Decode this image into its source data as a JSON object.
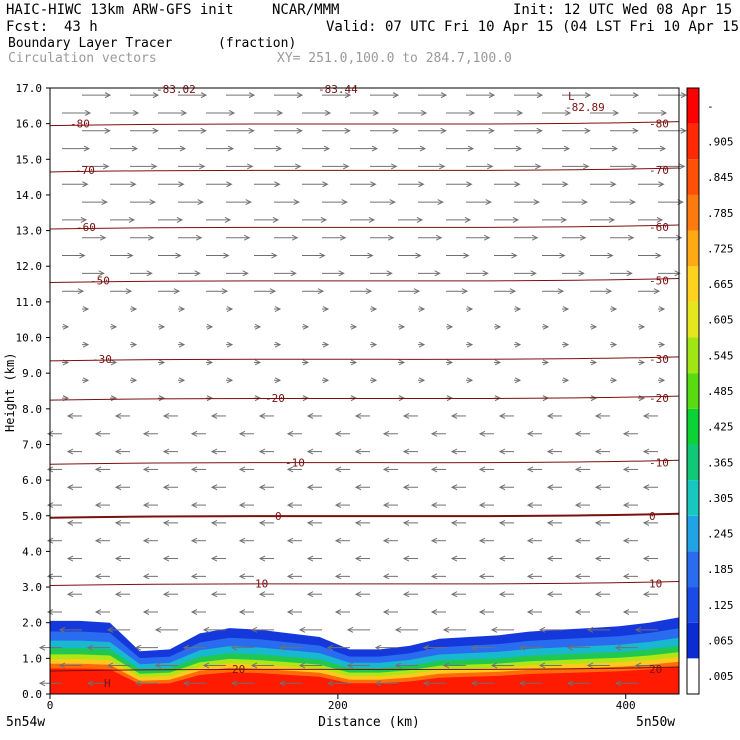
{
  "header": {
    "model_line": "HAIC-HIWC 13km ARW-GFS init",
    "org": "NCAR/MMM",
    "init": "Init: 12 UTC Wed 08 Apr 15",
    "fcst_label": "Fcst:",
    "fcst_value": "43 h",
    "valid": "Valid: 07 UTC Fri 10 Apr 15 (04 LST Fri 10 Apr 15)",
    "field_name": "Boundary Layer Tracer",
    "field_units": "(fraction)",
    "vector_label": "Circulation vectors",
    "xy_label": "XY= 251.0,100.0 to 284.7,100.0"
  },
  "chart_data": {
    "type": "heatmap",
    "xlabel": "Distance (km)",
    "ylabel": "Height (km)",
    "x_ticks": [
      0,
      200,
      400
    ],
    "x_left_label": "5n54w",
    "x_right_label": "5n50w",
    "xlim": [
      0,
      437
    ],
    "ylim": [
      0,
      17
    ],
    "y_ticks": [
      "0.0",
      "1.0",
      "2.0",
      "3.0",
      "4.0",
      "5.0",
      "6.0",
      "7.0",
      "8.0",
      "9.0",
      "10.0",
      "11.0",
      "12.0",
      "13.0",
      "14.0",
      "15.0",
      "16.0",
      "17.0"
    ],
    "colorbar_labels": [
      ".005",
      ".065",
      ".125",
      ".185",
      ".245",
      ".305",
      ".365",
      ".425",
      ".485",
      ".545",
      ".605",
      ".665",
      ".725",
      ".785",
      ".845",
      ".905",
      "-"
    ],
    "colorbar_colors": [
      "#ffffff",
      "#0a2cd2",
      "#1a4be6",
      "#2a6cf0",
      "#20a4e6",
      "#18c8c0",
      "#10c878",
      "#0cd234",
      "#58dc10",
      "#a0e614",
      "#e6e61e",
      "#ffd21e",
      "#ffaa14",
      "#ff7a0c",
      "#ff5008",
      "#ff2a04",
      "#ff0000"
    ],
    "contours": [
      {
        "value": -80,
        "y": 16.0,
        "label": "-80"
      },
      {
        "value": -70,
        "y": 14.7,
        "label": "-70"
      },
      {
        "value": -60,
        "y": 13.1,
        "label": "-60"
      },
      {
        "value": -50,
        "y": 11.6,
        "label": "-50"
      },
      {
        "value": -30,
        "y": 9.4,
        "label": "-30"
      },
      {
        "value": -20,
        "y": 8.3,
        "label": "-20"
      },
      {
        "value": -10,
        "y": 6.5,
        "label": "-10"
      },
      {
        "value": 0,
        "y": 5.0,
        "label": "0"
      },
      {
        "value": 10,
        "y": 3.1,
        "label": "10"
      },
      {
        "value": 20,
        "y": 0.7,
        "label": "20"
      }
    ],
    "extra_labels": [
      "-83.44",
      "-82.89",
      "-83.02",
      "H",
      "L"
    ],
    "tracer_top_km": [
      2.05,
      2.05,
      2.0,
      1.2,
      1.25,
      1.7,
      1.85,
      1.8,
      1.7,
      1.6,
      1.25,
      1.25,
      1.35,
      1.55,
      1.6,
      1.65,
      1.75,
      1.8,
      1.85,
      1.9,
      2.0,
      2.15
    ]
  }
}
